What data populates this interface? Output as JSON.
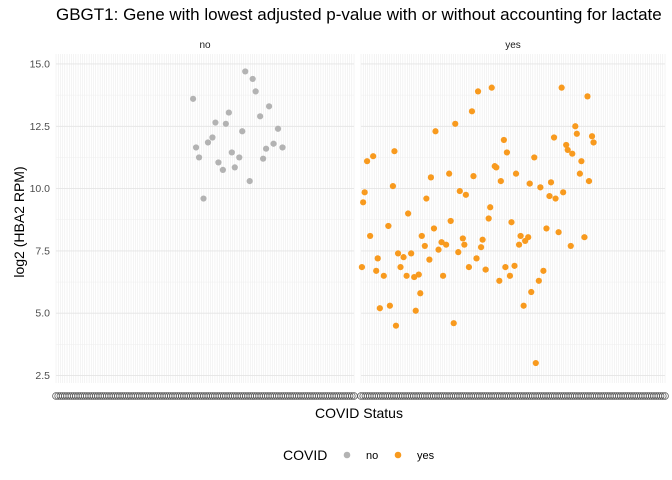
{
  "chart_data": {
    "type": "scatter",
    "title": "GBGT1: Gene with lowest adjusted p-value with or without accounting for lactate",
    "xlabel": "COVID Status",
    "ylabel": "log2 (HBA2 RPM)",
    "ylim": [
      2.2,
      15.4
    ],
    "yticks": [
      2.5,
      5.0,
      7.5,
      10.0,
      12.5,
      15.0
    ],
    "ytick_labels": [
      "2.5",
      "5.0",
      "7.5",
      "10.0",
      "12.5",
      "15.0"
    ],
    "facets": [
      "no",
      "yes"
    ],
    "grid": true,
    "legend": {
      "title": "COVID",
      "placement": "bottom",
      "entries": [
        {
          "label": "no",
          "color": "#b3b3b3"
        },
        {
          "label": "yes",
          "color": "#f89a1e"
        }
      ]
    },
    "series": [
      {
        "name": "no",
        "color": "#b3b3b3",
        "points": [
          [
            0.46,
            13.6
          ],
          [
            0.47,
            11.65
          ],
          [
            0.48,
            11.25
          ],
          [
            0.495,
            9.6
          ],
          [
            0.51,
            11.85
          ],
          [
            0.525,
            12.05
          ],
          [
            0.535,
            12.65
          ],
          [
            0.545,
            11.05
          ],
          [
            0.56,
            10.75
          ],
          [
            0.57,
            12.6
          ],
          [
            0.58,
            13.05
          ],
          [
            0.59,
            11.45
          ],
          [
            0.6,
            10.85
          ],
          [
            0.615,
            11.25
          ],
          [
            0.625,
            12.3
          ],
          [
            0.635,
            14.7
          ],
          [
            0.65,
            10.3
          ],
          [
            0.66,
            14.4
          ],
          [
            0.67,
            13.9
          ],
          [
            0.685,
            12.9
          ],
          [
            0.695,
            11.2
          ],
          [
            0.705,
            11.6
          ],
          [
            0.715,
            13.3
          ],
          [
            0.73,
            11.8
          ],
          [
            0.745,
            12.4
          ],
          [
            0.76,
            11.65
          ]
        ]
      },
      {
        "name": "yes",
        "color": "#f89a1e",
        "points": [
          [
            0.003,
            6.85
          ],
          [
            0.007,
            9.45
          ],
          [
            0.012,
            9.85
          ],
          [
            0.02,
            11.1
          ],
          [
            0.03,
            8.1
          ],
          [
            0.04,
            11.3
          ],
          [
            0.05,
            6.7
          ],
          [
            0.055,
            7.2
          ],
          [
            0.062,
            5.2
          ],
          [
            0.075,
            6.5
          ],
          [
            0.09,
            8.5
          ],
          [
            0.095,
            5.3
          ],
          [
            0.105,
            10.1
          ],
          [
            0.11,
            11.5
          ],
          [
            0.115,
            4.5
          ],
          [
            0.122,
            7.4
          ],
          [
            0.13,
            6.85
          ],
          [
            0.14,
            7.25
          ],
          [
            0.15,
            6.5
          ],
          [
            0.155,
            9.0
          ],
          [
            0.165,
            7.4
          ],
          [
            0.175,
            6.45
          ],
          [
            0.18,
            5.1
          ],
          [
            0.19,
            6.55
          ],
          [
            0.195,
            5.8
          ],
          [
            0.2,
            8.1
          ],
          [
            0.21,
            7.7
          ],
          [
            0.215,
            9.6
          ],
          [
            0.225,
            7.15
          ],
          [
            0.23,
            10.45
          ],
          [
            0.24,
            8.4
          ],
          [
            0.245,
            12.3
          ],
          [
            0.255,
            7.55
          ],
          [
            0.265,
            7.85
          ],
          [
            0.27,
            6.5
          ],
          [
            0.28,
            7.75
          ],
          [
            0.29,
            10.6
          ],
          [
            0.295,
            8.7
          ],
          [
            0.305,
            4.6
          ],
          [
            0.31,
            12.6
          ],
          [
            0.32,
            7.45
          ],
          [
            0.325,
            9.9
          ],
          [
            0.335,
            8.0
          ],
          [
            0.34,
            7.75
          ],
          [
            0.345,
            9.75
          ],
          [
            0.355,
            6.85
          ],
          [
            0.365,
            13.1
          ],
          [
            0.37,
            10.5
          ],
          [
            0.38,
            7.2
          ],
          [
            0.385,
            13.9
          ],
          [
            0.395,
            7.65
          ],
          [
            0.4,
            7.95
          ],
          [
            0.41,
            6.75
          ],
          [
            0.42,
            8.8
          ],
          [
            0.425,
            9.25
          ],
          [
            0.43,
            14.05
          ],
          [
            0.44,
            10.9
          ],
          [
            0.445,
            10.85
          ],
          [
            0.455,
            6.3
          ],
          [
            0.46,
            10.3
          ],
          [
            0.47,
            11.95
          ],
          [
            0.475,
            6.85
          ],
          [
            0.48,
            11.45
          ],
          [
            0.49,
            6.5
          ],
          [
            0.495,
            8.65
          ],
          [
            0.505,
            6.9
          ],
          [
            0.51,
            10.6
          ],
          [
            0.52,
            7.75
          ],
          [
            0.525,
            8.1
          ],
          [
            0.535,
            5.3
          ],
          [
            0.54,
            7.9
          ],
          [
            0.55,
            8.05
          ],
          [
            0.555,
            10.2
          ],
          [
            0.56,
            5.85
          ],
          [
            0.57,
            11.25
          ],
          [
            0.575,
            3.0
          ],
          [
            0.585,
            6.3
          ],
          [
            0.59,
            10.05
          ],
          [
            0.6,
            6.7
          ],
          [
            0.61,
            8.4
          ],
          [
            0.62,
            9.7
          ],
          [
            0.625,
            10.25
          ],
          [
            0.635,
            12.05
          ],
          [
            0.64,
            9.6
          ],
          [
            0.65,
            8.25
          ],
          [
            0.66,
            14.05
          ],
          [
            0.665,
            9.85
          ],
          [
            0.675,
            11.75
          ],
          [
            0.68,
            11.55
          ],
          [
            0.69,
            7.7
          ],
          [
            0.695,
            11.4
          ],
          [
            0.705,
            12.5
          ],
          [
            0.71,
            12.2
          ],
          [
            0.72,
            10.6
          ],
          [
            0.725,
            11.1
          ],
          [
            0.735,
            8.05
          ],
          [
            0.745,
            13.7
          ],
          [
            0.75,
            10.3
          ],
          [
            0.76,
            12.1
          ],
          [
            0.765,
            11.85
          ]
        ]
      }
    ]
  }
}
